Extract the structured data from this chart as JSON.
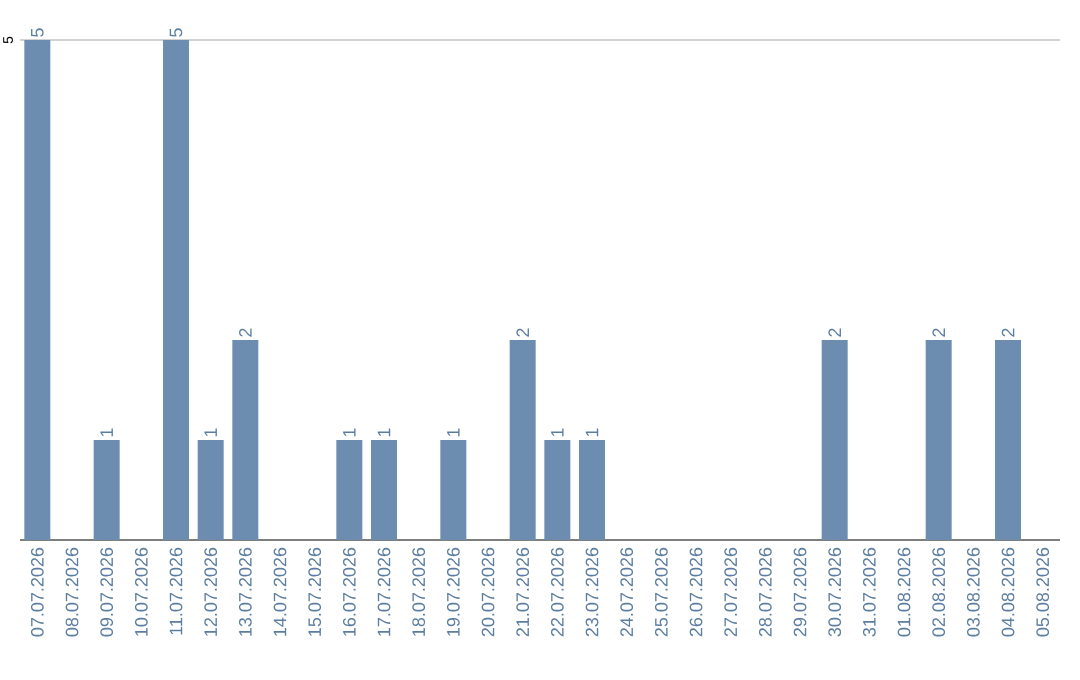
{
  "chart_data": {
    "type": "bar",
    "categories": [
      "07.07.2026",
      "08.07.2026",
      "09.07.2026",
      "10.07.2026",
      "11.07.2026",
      "12.07.2026",
      "13.07.2026",
      "14.07.2026",
      "15.07.2026",
      "16.07.2026",
      "17.07.2026",
      "18.07.2026",
      "19.07.2026",
      "20.07.2026",
      "21.07.2026",
      "22.07.2026",
      "23.07.2026",
      "24.07.2026",
      "25.07.2026",
      "26.07.2026",
      "27.07.2026",
      "28.07.2026",
      "29.07.2026",
      "30.07.2026",
      "31.07.2026",
      "01.08.2026",
      "02.08.2026",
      "03.08.2026",
      "04.08.2026",
      "05.08.2026"
    ],
    "values": [
      5,
      0,
      1,
      0,
      5,
      1,
      2,
      0,
      0,
      1,
      1,
      0,
      1,
      0,
      2,
      1,
      1,
      0,
      0,
      0,
      0,
      0,
      0,
      2,
      0,
      0,
      2,
      0,
      2,
      0
    ],
    "value_labels": [
      "5",
      null,
      "1",
      null,
      "5",
      "1",
      "2",
      null,
      null,
      "1",
      "1",
      null,
      "1",
      null,
      "2",
      "1",
      "1",
      null,
      null,
      null,
      null,
      null,
      null,
      "2",
      null,
      null,
      "2",
      null,
      "2",
      null
    ],
    "color": "#6c8daf",
    "ylim": [
      0,
      5
    ],
    "yticks": [
      {
        "value": 0,
        "label": null
      },
      5
    ],
    "grid": "y"
  }
}
